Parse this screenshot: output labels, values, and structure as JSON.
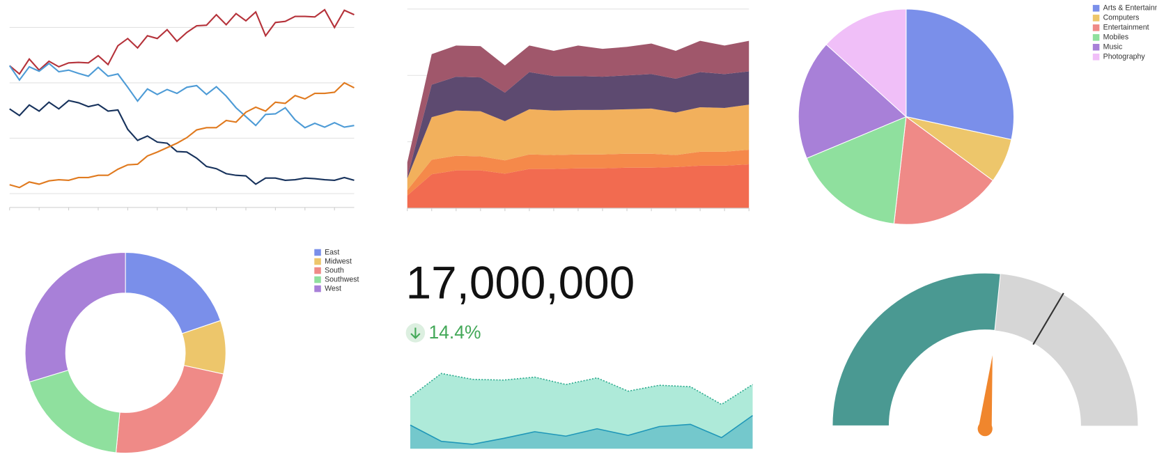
{
  "chart_data": [
    {
      "type": "line",
      "categories": [
        null,
        null,
        null,
        null,
        null,
        null,
        null,
        null,
        null,
        null,
        null,
        null,
        null,
        null,
        null,
        null,
        null,
        null,
        null,
        null,
        null,
        null,
        null,
        null,
        null,
        null,
        null,
        null,
        null,
        null,
        null,
        null,
        null,
        null,
        null,
        null
      ],
      "ylim": [
        -25,
        340
      ],
      "yticks": [
        0,
        100,
        200,
        300
      ],
      "grid": true,
      "series": [
        {
          "color": "#b5323a",
          "values": [
            231,
            216,
            243,
            223,
            239,
            229,
            236,
            237,
            236,
            249,
            233,
            267,
            280,
            263,
            285,
            280,
            296,
            275,
            291,
            303,
            304,
            323,
            305,
            325,
            312,
            328,
            285,
            309,
            311,
            320,
            320,
            319,
            332,
            300,
            331,
            323
          ]
        },
        {
          "color": "#4d9bd6",
          "values": [
            231,
            205,
            229,
            221,
            235,
            220,
            223,
            217,
            212,
            228,
            212,
            216,
            192,
            167,
            189,
            179,
            188,
            181,
            192,
            195,
            179,
            193,
            176,
            155,
            139,
            123,
            143,
            144,
            155,
            133,
            119,
            127,
            120,
            128,
            120,
            123
          ]
        },
        {
          "color": "#17325c",
          "values": [
            153,
            141,
            160,
            149,
            165,
            153,
            168,
            164,
            157,
            161,
            149,
            151,
            116,
            96,
            104,
            93,
            91,
            76,
            75,
            64,
            49,
            45,
            36,
            33,
            32,
            17,
            28,
            28,
            24,
            25,
            28,
            27,
            25,
            24,
            29,
            24
          ]
        },
        {
          "color": "#e07a1f",
          "values": [
            16,
            11,
            21,
            17,
            23,
            25,
            24,
            29,
            29,
            33,
            33,
            44,
            52,
            53,
            68,
            75,
            83,
            91,
            101,
            115,
            119,
            119,
            132,
            129,
            147,
            156,
            149,
            165,
            163,
            177,
            171,
            181,
            181,
            183,
            200,
            191
          ]
        }
      ]
    },
    {
      "type": "stacked-area",
      "categories": [
        null,
        null,
        null,
        null,
        null,
        null,
        null,
        null,
        null,
        null,
        null,
        null,
        null,
        null,
        null
      ],
      "ylim": [
        0,
        300
      ],
      "yticks": [
        100,
        200,
        300
      ],
      "grid": true,
      "series": [
        {
          "color": "#f26b50",
          "values": [
            19,
            51,
            57,
            57,
            52,
            59,
            59,
            60,
            60,
            61,
            61,
            62,
            64,
            64,
            66
          ]
        },
        {
          "color": "#f5894a",
          "values": [
            8,
            22,
            22,
            21,
            20,
            22,
            21,
            21,
            21,
            21,
            21,
            18,
            21,
            21,
            22
          ]
        },
        {
          "color": "#f2b05c",
          "values": [
            18,
            64,
            68,
            68,
            59,
            68,
            67,
            67,
            67,
            67,
            68,
            64,
            67,
            66,
            68
          ]
        },
        {
          "color": "#5d4a70",
          "values": [
            2,
            49,
            51,
            51,
            43,
            56,
            52,
            51,
            50,
            51,
            52,
            51,
            53,
            51,
            50
          ]
        },
        {
          "color": "#a0576b",
          "values": [
            22,
            46,
            47,
            47,
            41,
            40,
            38,
            46,
            42,
            43,
            46,
            42,
            47,
            43,
            46
          ]
        }
      ]
    },
    {
      "type": "pie",
      "categories": [
        "Arts & Entertainment",
        "Computers",
        "Entertainment",
        "Mobiles",
        "Music",
        "Photography"
      ],
      "values": [
        28.4,
        6.7,
        16.7,
        16.9,
        18,
        13.3
      ],
      "colors": [
        "#7a8fea",
        "#edc66b",
        "#ef8a87",
        "#8fe09e",
        "#a880d8",
        "#f0bff8"
      ],
      "legend": "top-right"
    },
    {
      "type": "donut",
      "categories": [
        "East",
        "Midwest",
        "South",
        "Southwest",
        "West"
      ],
      "values": [
        19.8,
        8.6,
        23.1,
        18.8,
        29.7
      ],
      "colors": [
        "#7a8fea",
        "#edc66b",
        "#ef8a87",
        "#8fe09e",
        "#a880d8"
      ],
      "legend": "top-right"
    },
    {
      "type": "kpi",
      "values": [
        17000000
      ],
      "value_labels": [
        "17,000,000"
      ],
      "change": 14.4,
      "change_label": "14.4%",
      "direction": "down",
      "color": "#43a858"
    },
    {
      "type": "area",
      "categories": [
        null,
        null,
        null,
        null,
        null,
        null,
        null,
        null,
        null,
        null,
        null,
        null
      ],
      "ylim": [
        0,
        110
      ],
      "series": [
        {
          "color": "#aeead9",
          "line_color": "#2eab8f",
          "values": [
            70,
            102,
            94,
            93,
            97,
            87,
            96,
            78,
            86,
            84,
            60,
            87
          ]
        },
        {
          "color": "#74c8cc",
          "line_color": "#1f97b8",
          "values": [
            32,
            10,
            6,
            14,
            23,
            17,
            27,
            18,
            30,
            33,
            15,
            45
          ]
        }
      ]
    },
    {
      "type": "gauge",
      "value": 53.2,
      "target": 67,
      "ylim": [
        0,
        100
      ],
      "color": "#4a9992",
      "track_color": "#d6d6d6",
      "needle_color": "#f0862d"
    }
  ]
}
